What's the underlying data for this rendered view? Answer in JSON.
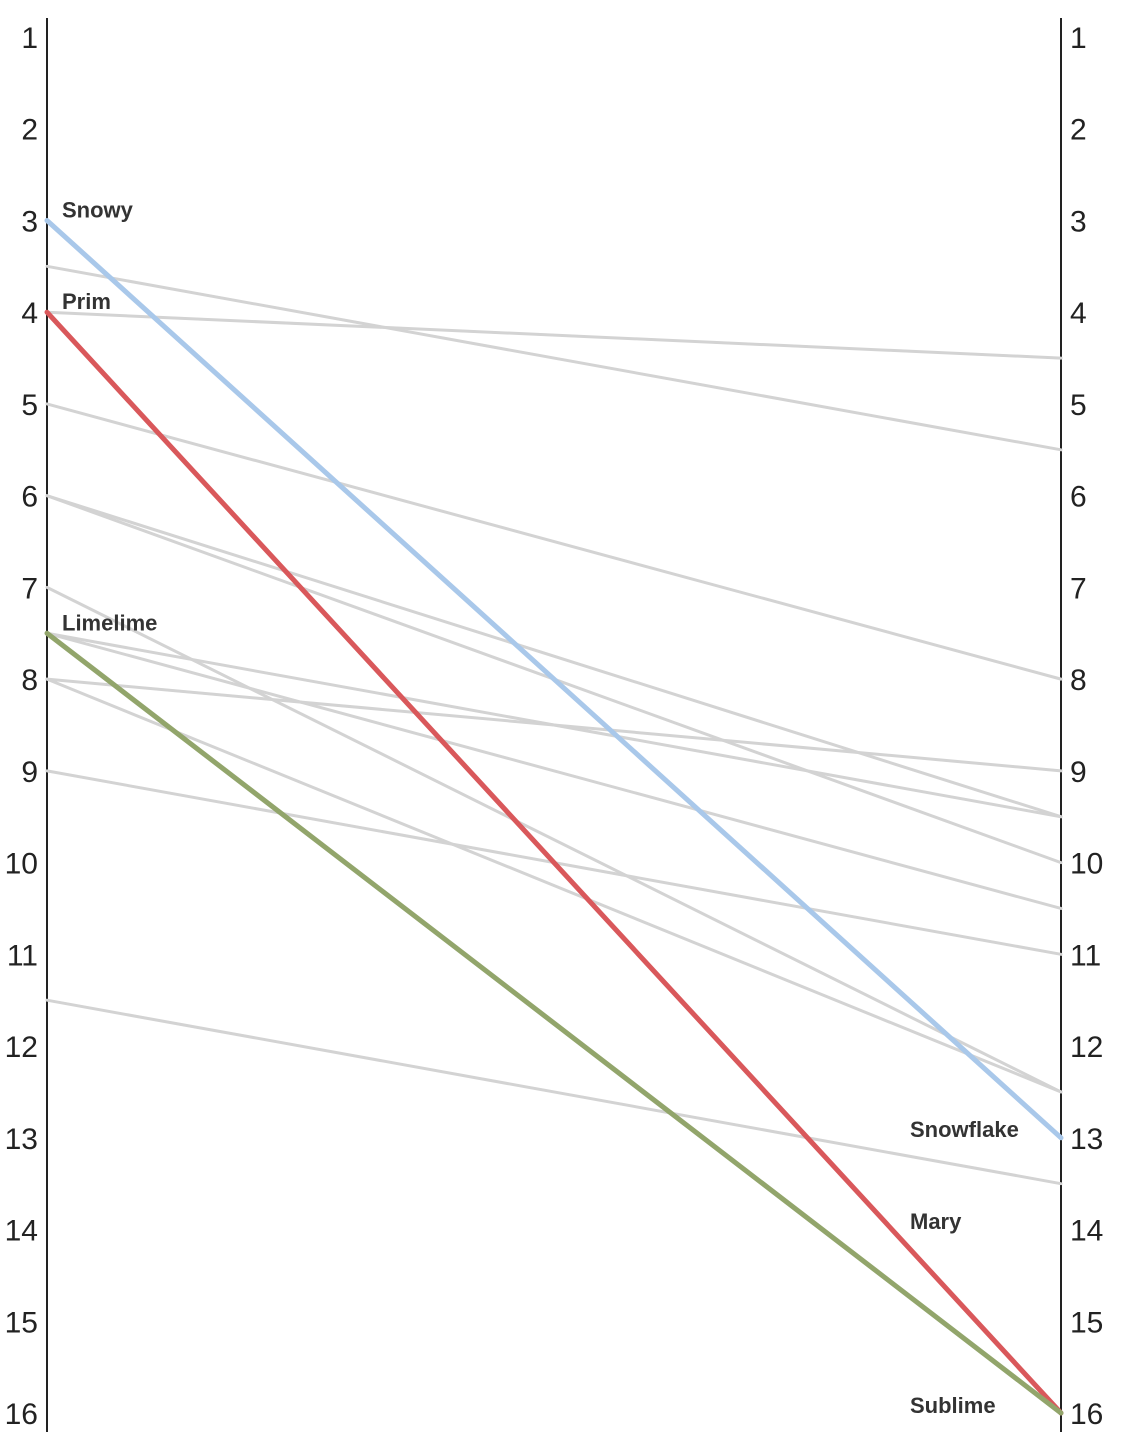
{
  "chart_data": {
    "type": "slope",
    "title": "",
    "axis": {
      "ticks": [
        1,
        2,
        3,
        4,
        5,
        6,
        7,
        8,
        9,
        10,
        11,
        12,
        13,
        14,
        15,
        16
      ],
      "ylim": [
        1,
        16
      ],
      "inverted": true
    },
    "highlight_colors": {
      "blue": "#a9c8ea",
      "red": "#d9585b",
      "green": "#92a56b",
      "gray": "#d3d3d3"
    },
    "series": [
      {
        "left": 3,
        "right": 13,
        "color": "#a9c8ea",
        "left_label": "Snowy",
        "right_label": "Snowflake"
      },
      {
        "left": 4,
        "right": 16,
        "color": "#d9585b",
        "left_label": "Prim",
        "right_label": "Mary"
      },
      {
        "left": 7.5,
        "right": 16,
        "color": "#92a56b",
        "left_label": "Limelime",
        "right_label": "Sublime"
      },
      {
        "left": 3.5,
        "right": 5.5,
        "color": "#d3d3d3"
      },
      {
        "left": 4,
        "right": 4.5,
        "color": "#d3d3d3"
      },
      {
        "left": 5,
        "right": 8,
        "color": "#d3d3d3"
      },
      {
        "left": 6,
        "right": 9.5,
        "color": "#d3d3d3"
      },
      {
        "left": 6,
        "right": 10,
        "color": "#d3d3d3"
      },
      {
        "left": 7,
        "right": 12.5,
        "color": "#d3d3d3"
      },
      {
        "left": 7.5,
        "right": 9.5,
        "color": "#d3d3d3"
      },
      {
        "left": 7.5,
        "right": 10.5,
        "color": "#d3d3d3"
      },
      {
        "left": 8,
        "right": 9,
        "color": "#d3d3d3"
      },
      {
        "left": 8,
        "right": 12.5,
        "color": "#d3d3d3"
      },
      {
        "left": 9,
        "right": 11,
        "color": "#d3d3d3"
      },
      {
        "left": 11.5,
        "right": 13.5,
        "color": "#d3d3d3"
      }
    ]
  }
}
